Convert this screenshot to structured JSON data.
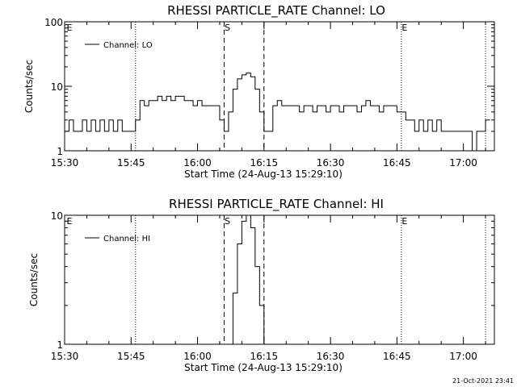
{
  "footer": {
    "timestamp": "21-Oct-2021 23:41"
  },
  "chart_data": [
    {
      "type": "line",
      "title": "RHESSI PARTICLE_RATE Channel: LO",
      "xlabel": "Start Time (24-Aug-13 15:29:10)",
      "ylabel": "Counts/sec",
      "y_scale": "log",
      "xlim": [
        "15:30",
        "17:07"
      ],
      "ylim": [
        1,
        100
      ],
      "x_ticks": [
        "15:30",
        "15:45",
        "16:00",
        "16:15",
        "16:30",
        "16:45",
        "17:00"
      ],
      "y_ticks": [
        "1",
        "10",
        "100"
      ],
      "legend": {
        "entries": [
          "Channel: LO"
        ],
        "placement": "top-left"
      },
      "markers": [
        {
          "label": "E",
          "time": "15:30",
          "style": "none"
        },
        {
          "label": "",
          "time": "15:46",
          "style": "dotted"
        },
        {
          "label": "S",
          "time": "16:06",
          "style": "dashed"
        },
        {
          "label": "",
          "time": "16:15",
          "style": "dashed"
        },
        {
          "label": "E",
          "time": "16:46",
          "style": "dotted"
        },
        {
          "label": "",
          "time": "17:05",
          "style": "dotted"
        }
      ],
      "series": [
        {
          "name": "Channel: LO",
          "points": [
            [
              "15:30",
              2
            ],
            [
              "15:31",
              3
            ],
            [
              "15:32",
              2
            ],
            [
              "15:33",
              2
            ],
            [
              "15:34",
              3
            ],
            [
              "15:35",
              2
            ],
            [
              "15:36",
              3
            ],
            [
              "15:37",
              2
            ],
            [
              "15:38",
              3
            ],
            [
              "15:39",
              2
            ],
            [
              "15:40",
              3
            ],
            [
              "15:41",
              2
            ],
            [
              "15:42",
              3
            ],
            [
              "15:43",
              2
            ],
            [
              "15:44",
              2
            ],
            [
              "15:45",
              2
            ],
            [
              "15:46",
              3
            ],
            [
              "15:47",
              6
            ],
            [
              "15:48",
              5
            ],
            [
              "15:49",
              6
            ],
            [
              "15:50",
              6
            ],
            [
              "15:51",
              7
            ],
            [
              "15:52",
              6
            ],
            [
              "15:53",
              7
            ],
            [
              "15:54",
              6
            ],
            [
              "15:55",
              7
            ],
            [
              "15:56",
              7
            ],
            [
              "15:57",
              6
            ],
            [
              "15:58",
              6
            ],
            [
              "15:59",
              5
            ],
            [
              "16:00",
              6
            ],
            [
              "16:01",
              5
            ],
            [
              "16:02",
              5
            ],
            [
              "16:03",
              5
            ],
            [
              "16:04",
              5
            ],
            [
              "16:05",
              3
            ],
            [
              "16:06",
              2
            ],
            [
              "16:07",
              4
            ],
            [
              "16:08",
              9
            ],
            [
              "16:09",
              13
            ],
            [
              "16:10",
              15
            ],
            [
              "16:11",
              16
            ],
            [
              "16:12",
              14
            ],
            [
              "16:13",
              9
            ],
            [
              "16:14",
              4
            ],
            [
              "16:15",
              2
            ],
            [
              "16:16",
              2
            ],
            [
              "16:17",
              5
            ],
            [
              "16:18",
              6
            ],
            [
              "16:19",
              5
            ],
            [
              "16:20",
              5
            ],
            [
              "16:21",
              5
            ],
            [
              "16:22",
              5
            ],
            [
              "16:23",
              4
            ],
            [
              "16:24",
              5
            ],
            [
              "16:25",
              5
            ],
            [
              "16:26",
              4
            ],
            [
              "16:27",
              5
            ],
            [
              "16:28",
              5
            ],
            [
              "16:29",
              4
            ],
            [
              "16:30",
              5
            ],
            [
              "16:31",
              5
            ],
            [
              "16:32",
              4
            ],
            [
              "16:33",
              5
            ],
            [
              "16:34",
              5
            ],
            [
              "16:35",
              5
            ],
            [
              "16:36",
              4
            ],
            [
              "16:37",
              5
            ],
            [
              "16:38",
              6
            ],
            [
              "16:39",
              5
            ],
            [
              "16:40",
              5
            ],
            [
              "16:41",
              4
            ],
            [
              "16:42",
              5
            ],
            [
              "16:43",
              5
            ],
            [
              "16:44",
              5
            ],
            [
              "16:45",
              4
            ],
            [
              "16:46",
              4
            ],
            [
              "16:47",
              3
            ],
            [
              "16:48",
              3
            ],
            [
              "16:49",
              2
            ],
            [
              "16:50",
              3
            ],
            [
              "16:51",
              2
            ],
            [
              "16:52",
              3
            ],
            [
              "16:53",
              2
            ],
            [
              "16:54",
              3
            ],
            [
              "16:55",
              2
            ],
            [
              "16:56",
              2
            ],
            [
              "16:57",
              2
            ],
            [
              "16:58",
              2
            ],
            [
              "16:59",
              2
            ],
            [
              "17:00",
              2
            ],
            [
              "17:01",
              2
            ],
            [
              "17:02",
              1
            ],
            [
              "17:03",
              2
            ],
            [
              "17:04",
              2
            ],
            [
              "17:05",
              3
            ]
          ]
        }
      ]
    },
    {
      "type": "line",
      "title": "RHESSI PARTICLE_RATE Channel: HI",
      "xlabel": "Start Time (24-Aug-13 15:29:10)",
      "ylabel": "Counts/sec",
      "y_scale": "log",
      "xlim": [
        "15:30",
        "17:07"
      ],
      "ylim": [
        1,
        10
      ],
      "x_ticks": [
        "15:30",
        "15:45",
        "16:00",
        "16:15",
        "16:30",
        "16:45",
        "17:00"
      ],
      "y_ticks": [
        "1",
        "10"
      ],
      "legend": {
        "entries": [
          "Channel: HI"
        ],
        "placement": "top-left"
      },
      "markers": [
        {
          "label": "E",
          "time": "15:30",
          "style": "none"
        },
        {
          "label": "",
          "time": "15:46",
          "style": "dotted"
        },
        {
          "label": "S",
          "time": "16:06",
          "style": "dashed"
        },
        {
          "label": "",
          "time": "16:15",
          "style": "dashed"
        },
        {
          "label": "E",
          "time": "16:46",
          "style": "dotted"
        },
        {
          "label": "",
          "time": "17:05",
          "style": "dotted"
        }
      ],
      "series": [
        {
          "name": "Channel: HI",
          "points": [
            [
              "16:07",
              1
            ],
            [
              "16:08",
              2.5
            ],
            [
              "16:09",
              6
            ],
            [
              "16:10",
              9
            ],
            [
              "16:11",
              10
            ],
            [
              "16:12",
              8
            ],
            [
              "16:13",
              4
            ],
            [
              "16:14",
              2
            ],
            [
              "16:15",
              1
            ]
          ]
        }
      ]
    }
  ]
}
